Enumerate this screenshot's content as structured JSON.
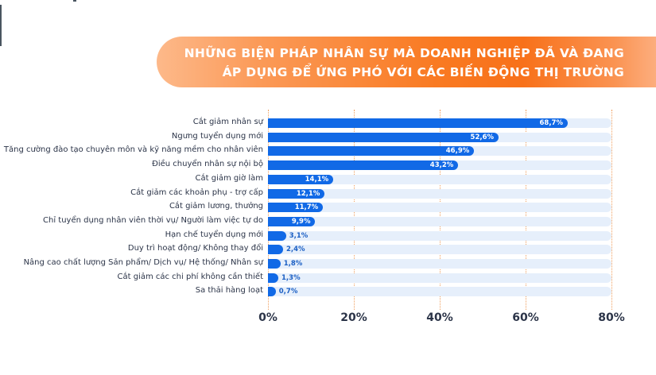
{
  "title": {
    "line1": "NHỮNG BIỆN PHÁP NHÂN SỰ MÀ DOANH NGHIỆP ĐÃ VÀ ĐANG",
    "line2": "ÁP DỤNG ĐỂ ỨNG PHÓ VỚI CÁC BIẾN ĐỘNG THỊ TRƯỜNG"
  },
  "colors": {
    "bar": "#1169e6",
    "track": "#e6effb",
    "banner": "#f8711a",
    "grid": "#f0a060",
    "text": "#2b3448"
  },
  "chart_data": {
    "type": "bar",
    "orientation": "horizontal",
    "title": "NHỮNG BIỆN PHÁP NHÂN SỰ MÀ DOANH NGHIỆP ĐÃ VÀ ĐANG ÁP DỤNG ĐỂ ỨNG PHÓ VỚI CÁC BIẾN ĐỘNG THỊ TRƯỜNG",
    "xlabel": "",
    "ylabel": "",
    "xlim": [
      0,
      80
    ],
    "grid": true,
    "legend": null,
    "ticks": [
      "0%",
      "20%",
      "40%",
      "60%",
      "80%"
    ],
    "categories": [
      "Cắt giảm nhân sự",
      "Ngưng tuyển dụng mới",
      "Tăng cường đào tạo chuyên môn và kỹ năng mềm cho nhân viên",
      "Điều chuyển nhân sự nội bộ",
      "Cắt giảm giờ làm",
      "Cắt giảm các khoản phụ - trợ cấp",
      "Cắt giảm lương, thưởng",
      "Chỉ tuyển dụng nhân viên thời vụ/ Người làm việc tự do",
      "Hạn chế tuyển dụng mới",
      "Duy trì hoạt động/ Không thay đổi",
      "Nâng cao chất lượng Sản phẩm/ Dịch vụ/ Hệ thống/ Nhân sự",
      "Cắt giảm các chi phí không cần thiết",
      "Sa thải hàng loạt"
    ],
    "values": [
      68.7,
      52.6,
      46.9,
      43.2,
      14.1,
      12.1,
      11.7,
      9.9,
      3.1,
      2.4,
      1.8,
      1.3,
      0.7
    ],
    "value_labels": [
      "68,7%",
      "52,6%",
      "46,9%",
      "43,2%",
      "14,1%",
      "12,1%",
      "11,7%",
      "9,9%",
      "3,1%",
      "2,4%",
      "1,8%",
      "1,3%",
      "0,7%"
    ]
  }
}
